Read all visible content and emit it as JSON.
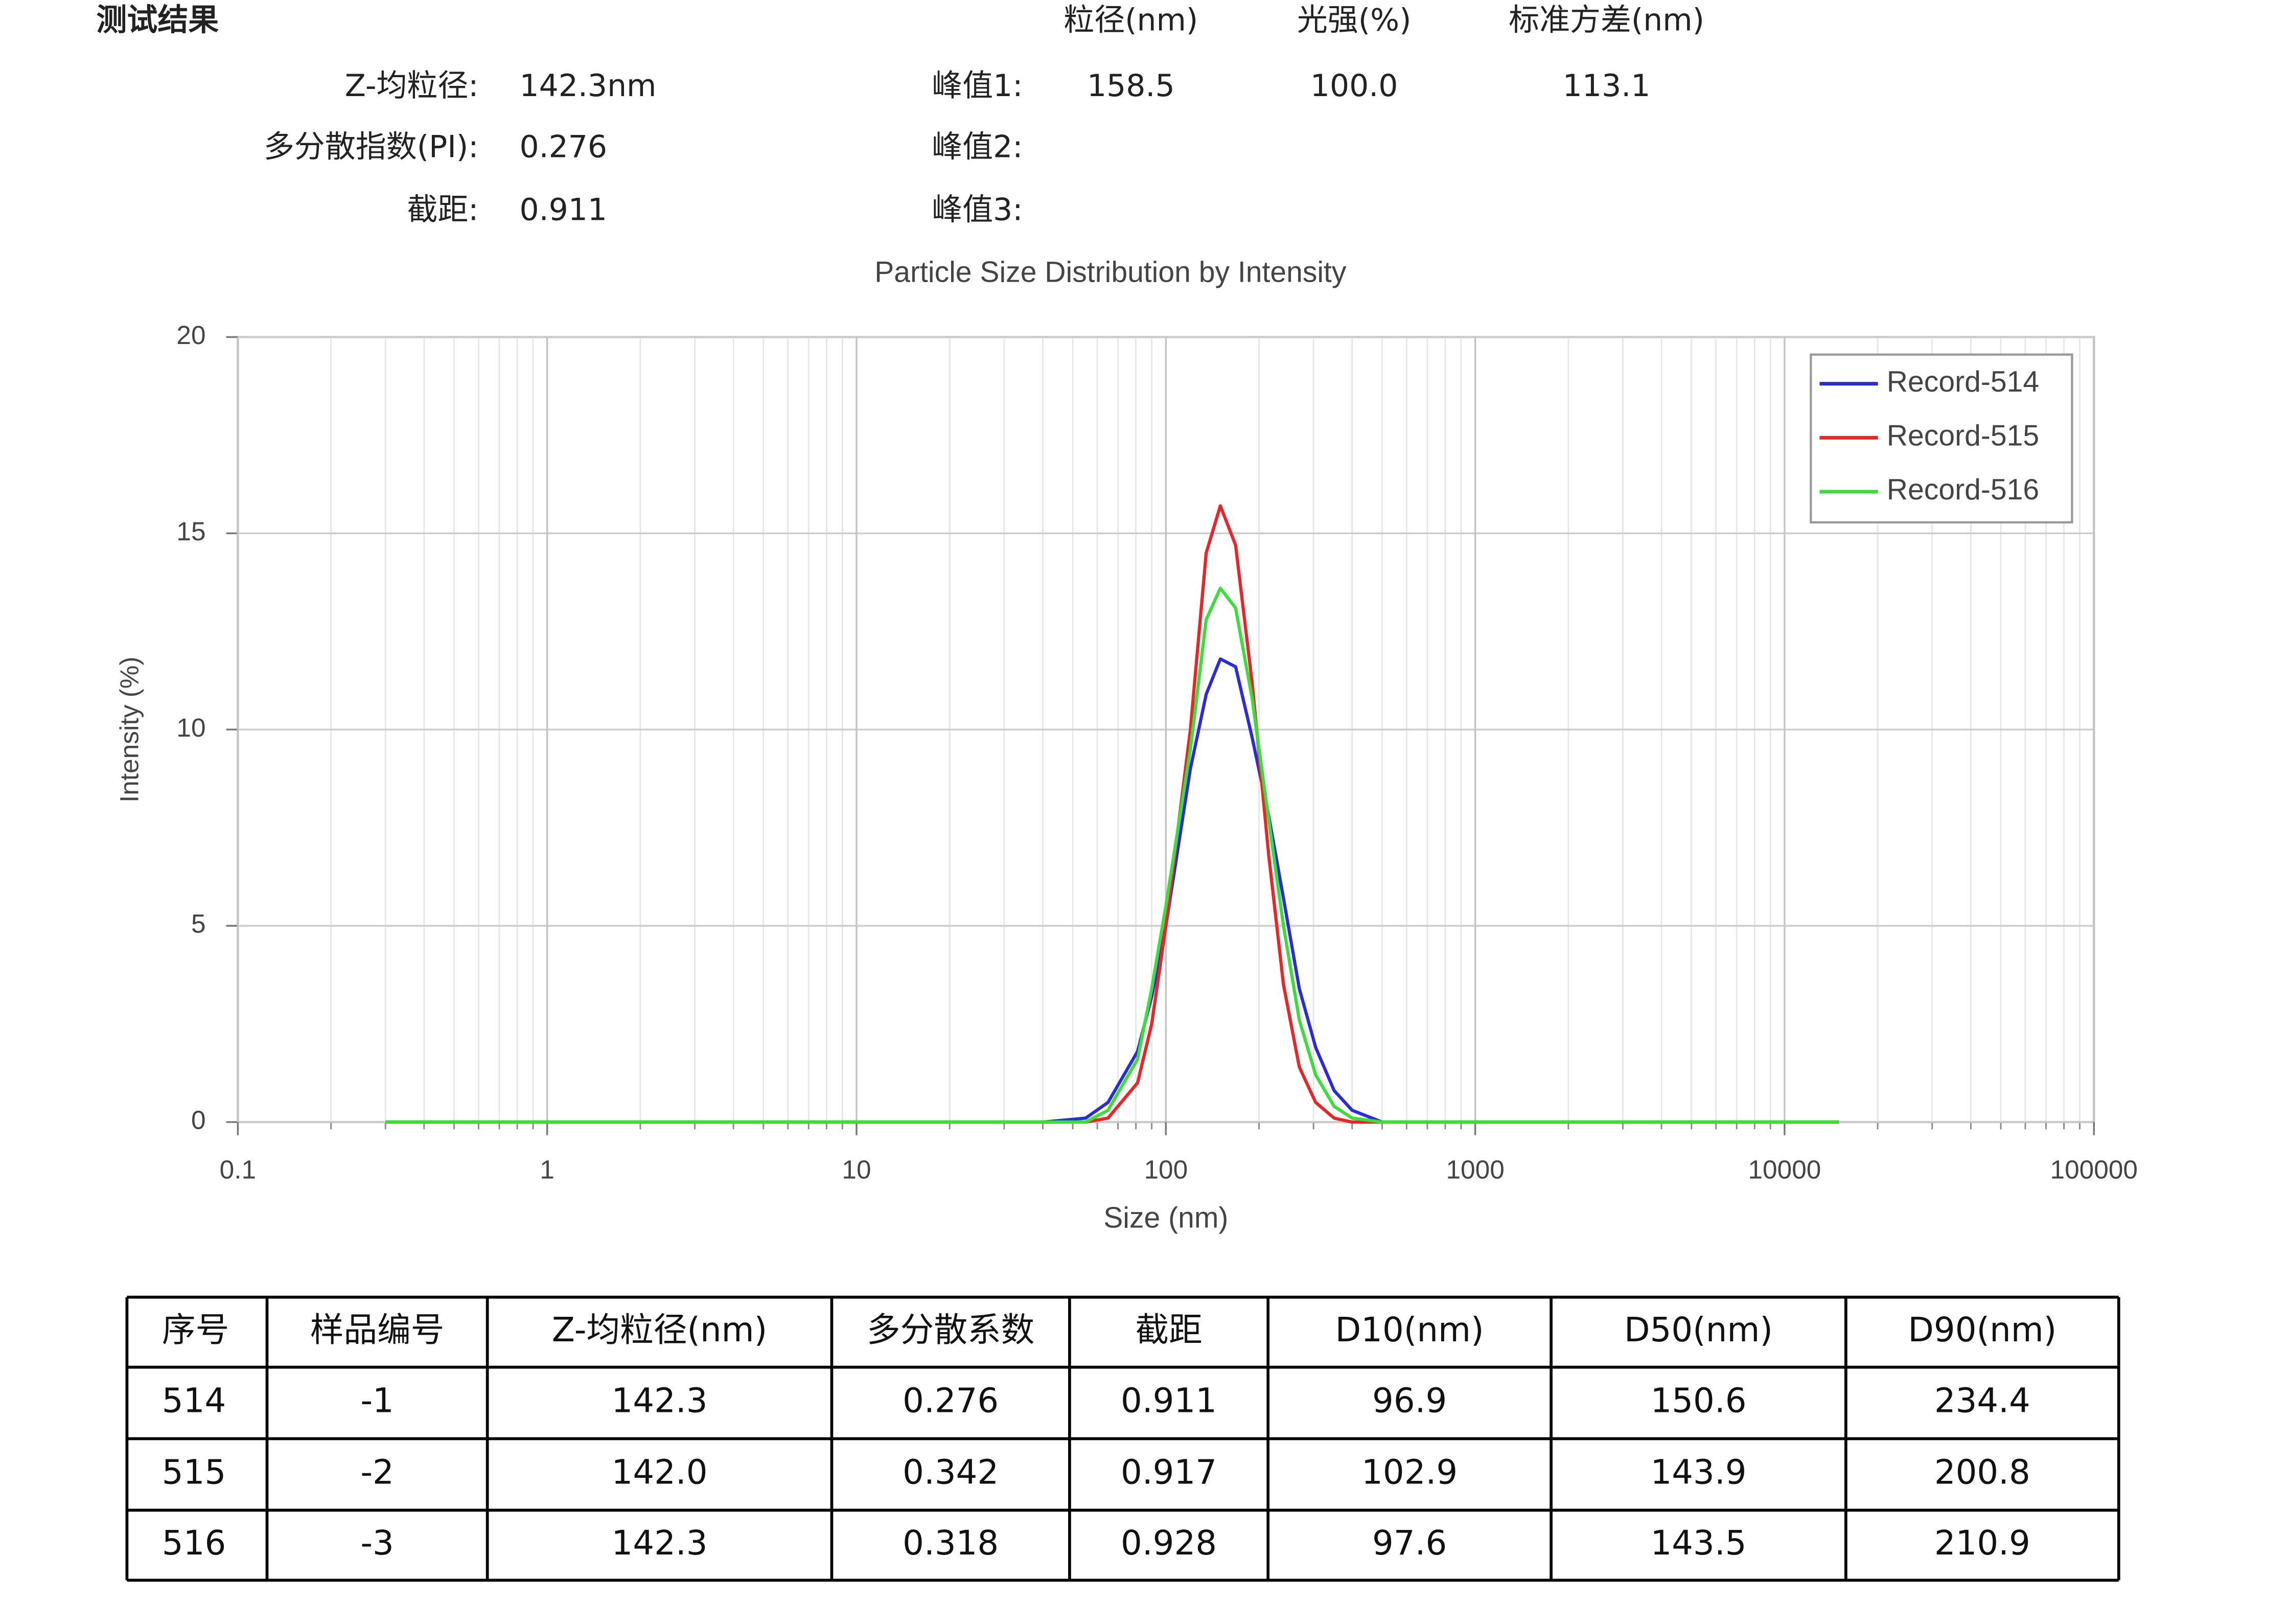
{
  "header": {
    "title": "测试结果",
    "summary": [
      {
        "label": "Z-均粒径:",
        "value": "142.3nm"
      },
      {
        "label": "多分散指数(PI):",
        "value": "0.276"
      },
      {
        "label": "截距:",
        "value": "0.911"
      }
    ],
    "peak_columns": [
      "粒径(nm)",
      "光强(%)",
      "标准方差(nm)"
    ],
    "peaks": [
      {
        "label": "峰值1:",
        "values": [
          "158.5",
          "100.0",
          "113.1"
        ]
      },
      {
        "label": "峰值2:",
        "values": []
      },
      {
        "label": "峰值3:",
        "values": []
      }
    ]
  },
  "chart_data": {
    "type": "line",
    "title": "Particle Size Distribution by Intensity",
    "x_label": "Size (nm)",
    "y_label": "Intensity (%)",
    "xscale": "log",
    "grid": true,
    "legend": "upper right",
    "xlim": [
      0.1,
      100000
    ],
    "xticks": [
      0.1,
      1,
      10,
      100,
      1000,
      10000,
      100000
    ],
    "ylim": [
      0,
      20
    ],
    "yticks": [
      0,
      5,
      10,
      15,
      20
    ],
    "x": [
      0.3,
      40,
      55,
      65,
      81,
      90,
      100,
      120,
      135,
      150,
      168,
      190,
      215,
      240,
      270,
      305,
      350,
      400,
      500,
      15000
    ],
    "series": [
      {
        "name": "Record-514",
        "color": "#2b2bd9",
        "values": [
          0,
          0,
          0.1,
          0.5,
          1.8,
          3.2,
          5,
          9,
          10.9,
          11.8,
          11.6,
          9.8,
          7.8,
          5.7,
          3.4,
          1.9,
          0.8,
          0.3,
          0,
          0
        ]
      },
      {
        "name": "Record-515",
        "color": "#e8262a",
        "values": [
          0,
          0,
          0,
          0.1,
          1,
          2.5,
          5,
          10,
          14.5,
          15.7,
          14.7,
          11.2,
          6.8,
          3.5,
          1.4,
          0.5,
          0.1,
          0,
          0,
          0
        ]
      },
      {
        "name": "Record-516",
        "color": "#3cdc3c",
        "values": [
          0,
          0,
          0,
          0.3,
          1.6,
          3.4,
          5.5,
          9.5,
          12.8,
          13.6,
          13.1,
          10.8,
          7.7,
          5,
          2.6,
          1.2,
          0.4,
          0.1,
          0,
          0
        ]
      }
    ]
  },
  "table": {
    "columns": [
      "序号",
      "样品编号",
      "Z-均粒径(nm)",
      "多分散系数",
      "截距",
      "D10(nm)",
      "D50(nm)",
      "D90(nm)"
    ],
    "rows": [
      [
        "514",
        "-1",
        "142.3",
        "0.276",
        "0.911",
        "96.9",
        "150.6",
        "234.4"
      ],
      [
        "515",
        "-2",
        "142.0",
        "0.342",
        "0.917",
        "102.9",
        "143.9",
        "200.8"
      ],
      [
        "516",
        "-3",
        "142.3",
        "0.318",
        "0.928",
        "97.6",
        "143.5",
        "210.9"
      ]
    ]
  }
}
